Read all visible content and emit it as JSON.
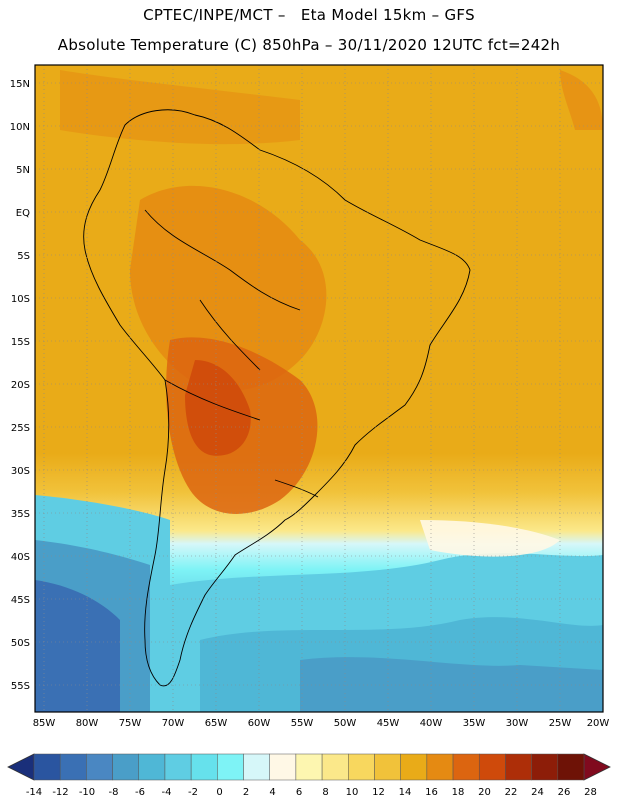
{
  "header": {
    "line1": "CPTEC/INPE/MCT –   Eta Model 15km – GFS",
    "line2": "Absolute Temperature (C) 850hPa – 30/11/2020 12UTC fct=242h"
  },
  "axes": {
    "lat_labels": [
      "15N",
      "10N",
      "5N",
      "EQ",
      "5S",
      "10S",
      "15S",
      "20S",
      "25S",
      "30S",
      "35S",
      "40S",
      "45S",
      "50S",
      "55S"
    ],
    "lon_labels": [
      "85W",
      "80W",
      "75W",
      "70W",
      "65W",
      "60W",
      "55W",
      "50W",
      "45W",
      "40W",
      "35W",
      "30W",
      "25W",
      "20W"
    ]
  },
  "colorbar": {
    "labels": [
      "-14",
      "-12",
      "-10",
      "-8",
      "-6",
      "-4",
      "-2",
      "0",
      "2",
      "4",
      "6",
      "8",
      "10",
      "12",
      "14",
      "16",
      "18",
      "20",
      "22",
      "24",
      "26",
      "28"
    ],
    "colors": [
      "#1f3a8a",
      "#2a55a0",
      "#3a70b4",
      "#4a87c2",
      "#4a9ec8",
      "#4fb7d6",
      "#5fcde3",
      "#66e1ec",
      "#7ef3f6",
      "#d6f7f9",
      "#fff8e6",
      "#fdf6b0",
      "#fbe88a",
      "#f8d75e",
      "#f1c23a",
      "#e9ab18",
      "#e58a12",
      "#dc6510",
      "#cf4a0b",
      "#ad2e08",
      "#8d1d08",
      "#6e1206",
      "#7a0a1c"
    ]
  }
}
